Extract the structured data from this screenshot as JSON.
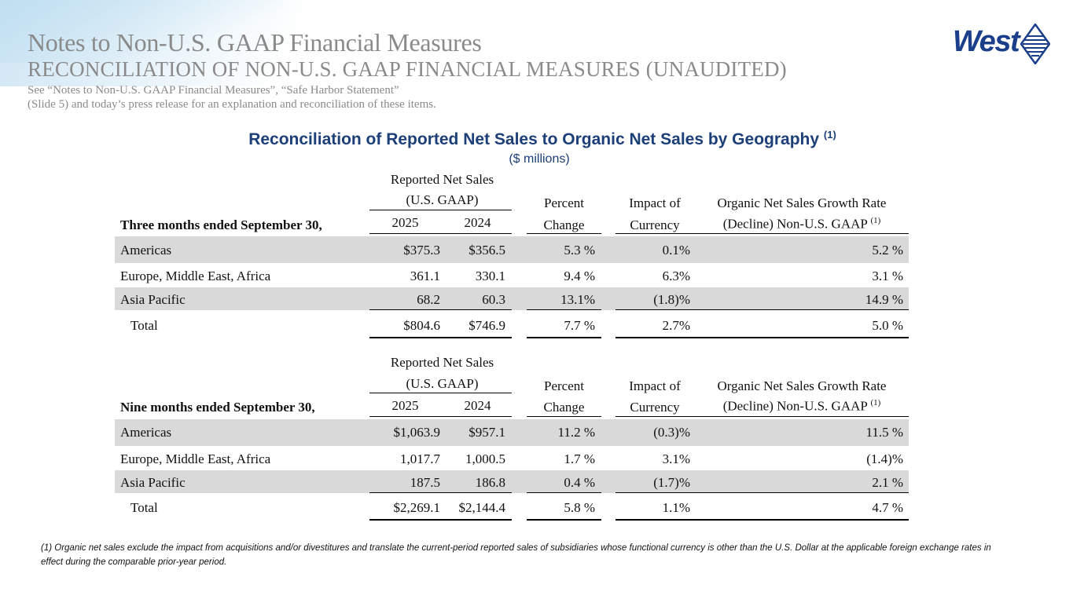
{
  "header": {
    "title": "Notes to Non-U.S. GAAP Financial Measures",
    "subtitle": "RECONCILIATION OF NON-U.S. GAAP FINANCIAL MEASURES (UNAUDITED)",
    "note_line1": "See “Notes to Non-U.S. GAAP Financial Measures”, “Safe Harbor Statement”",
    "note_line2": "(Slide 5) and today’s press release for an explanation and reconciliation of these items.",
    "logo_text": "West"
  },
  "report": {
    "title": "Reconciliation of Reported Net Sales to Organic Net Sales by Geography",
    "title_footnote": "(1)",
    "units": "($ millions)"
  },
  "columns": {
    "reported_line1": "Reported Net Sales",
    "reported_line2": "(U.S. GAAP)",
    "year_current": "2025",
    "year_prior": "2024",
    "percent_line1": "Percent",
    "percent_line2": "Change",
    "impact_line1": "Impact of",
    "impact_line2": "Currency",
    "organic_line1": "Organic Net Sales Growth Rate",
    "organic_line2": "(Decline) Non-U.S. GAAP",
    "organic_footnote": "(1)"
  },
  "tables": [
    {
      "period_label": "Three months ended September 30,",
      "rows": [
        {
          "region": "Americas",
          "current": "$375.3",
          "prior": "$356.5",
          "pct": "5.3 %",
          "fx": "0.1%",
          "organic": "5.2 %"
        },
        {
          "region": "Europe, Middle East, Africa",
          "current": "361.1",
          "prior": "330.1",
          "pct": "9.4 %",
          "fx": "6.3%",
          "organic": "3.1 %"
        },
        {
          "region": "Asia Pacific",
          "current": "68.2",
          "prior": "60.3",
          "pct": "13.1%",
          "fx": "(1.8)%",
          "organic": "14.9 %"
        },
        {
          "region": "Total",
          "current": "$804.6",
          "prior": "$746.9",
          "pct": "7.7 %",
          "fx": "2.7%",
          "organic": "5.0 %"
        }
      ]
    },
    {
      "period_label": "Nine months ended September 30,",
      "rows": [
        {
          "region": "Americas",
          "current": "$1,063.9",
          "prior": "$957.1",
          "pct": "11.2 %",
          "fx": "(0.3)%",
          "organic": "11.5 %"
        },
        {
          "region": "Europe, Middle East, Africa",
          "current": "1,017.7",
          "prior": "1,000.5",
          "pct": "1.7 %",
          "fx": "3.1%",
          "organic": "(1.4)%"
        },
        {
          "region": "Asia Pacific",
          "current": "187.5",
          "prior": "186.8",
          "pct": "0.4 %",
          "fx": "(1.7)%",
          "organic": "2.1 %"
        },
        {
          "region": "Total",
          "current": "$2,269.1",
          "prior": "$2,144.4",
          "pct": "5.8 %",
          "fx": "1.1%",
          "organic": "4.7 %"
        }
      ]
    }
  ],
  "footnote": "(1)  Organic net sales exclude the impact from acquisitions and/or divestitures and translate the current-period reported sales of subsidiaries whose functional currency is other than the U.S. Dollar at the applicable foreign exchange rates in effect during the comparable prior-year period."
}
